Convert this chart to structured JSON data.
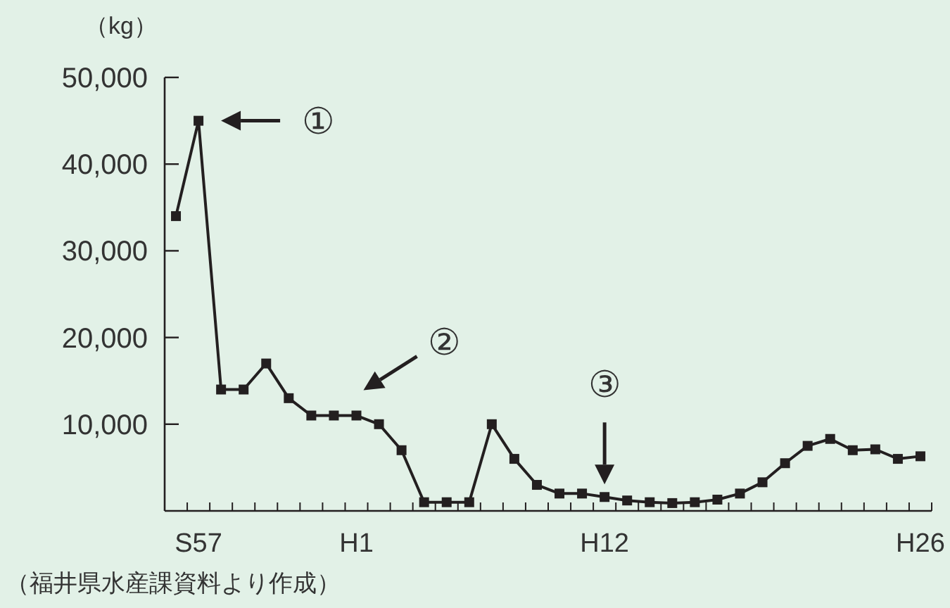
{
  "chart_data": {
    "type": "line",
    "ylabel": "（kg）",
    "categories": [
      null,
      "S57",
      null,
      null,
      null,
      null,
      null,
      null,
      "H1",
      null,
      null,
      null,
      null,
      null,
      null,
      null,
      null,
      null,
      null,
      "H12",
      null,
      null,
      null,
      null,
      null,
      null,
      null,
      null,
      null,
      null,
      null,
      null,
      null,
      "H26"
    ],
    "values": [
      34000,
      45000,
      14000,
      14000,
      17000,
      13000,
      11000,
      11000,
      11000,
      10000,
      7000,
      1000,
      1000,
      1000,
      10000,
      6000,
      3000,
      2000,
      2000,
      1600,
      1200,
      1000,
      900,
      1000,
      1300,
      2000,
      3300,
      5500,
      7500,
      8300,
      7000,
      7100,
      6000,
      6300
    ],
    "color": "#231f20",
    "marker": "square",
    "line_style": "solid",
    "ylim": [
      0,
      50000
    ],
    "yticks": [
      {
        "value": 10000,
        "label": "10,000"
      },
      {
        "value": 20000,
        "label": "20,000"
      },
      {
        "value": 30000,
        "label": "30,000"
      },
      {
        "value": 40000,
        "label": "40,000"
      },
      {
        "value": 50000,
        "label": "50,000"
      }
    ],
    "annotations": [
      {
        "text": "①",
        "x": "S57",
        "y": 45000
      },
      {
        "text": "②",
        "x": "H1",
        "y": 11000
      },
      {
        "text": "③",
        "x": "H12",
        "y": 1600
      },
      "（福井県水産課資料より作成）"
    ]
  }
}
